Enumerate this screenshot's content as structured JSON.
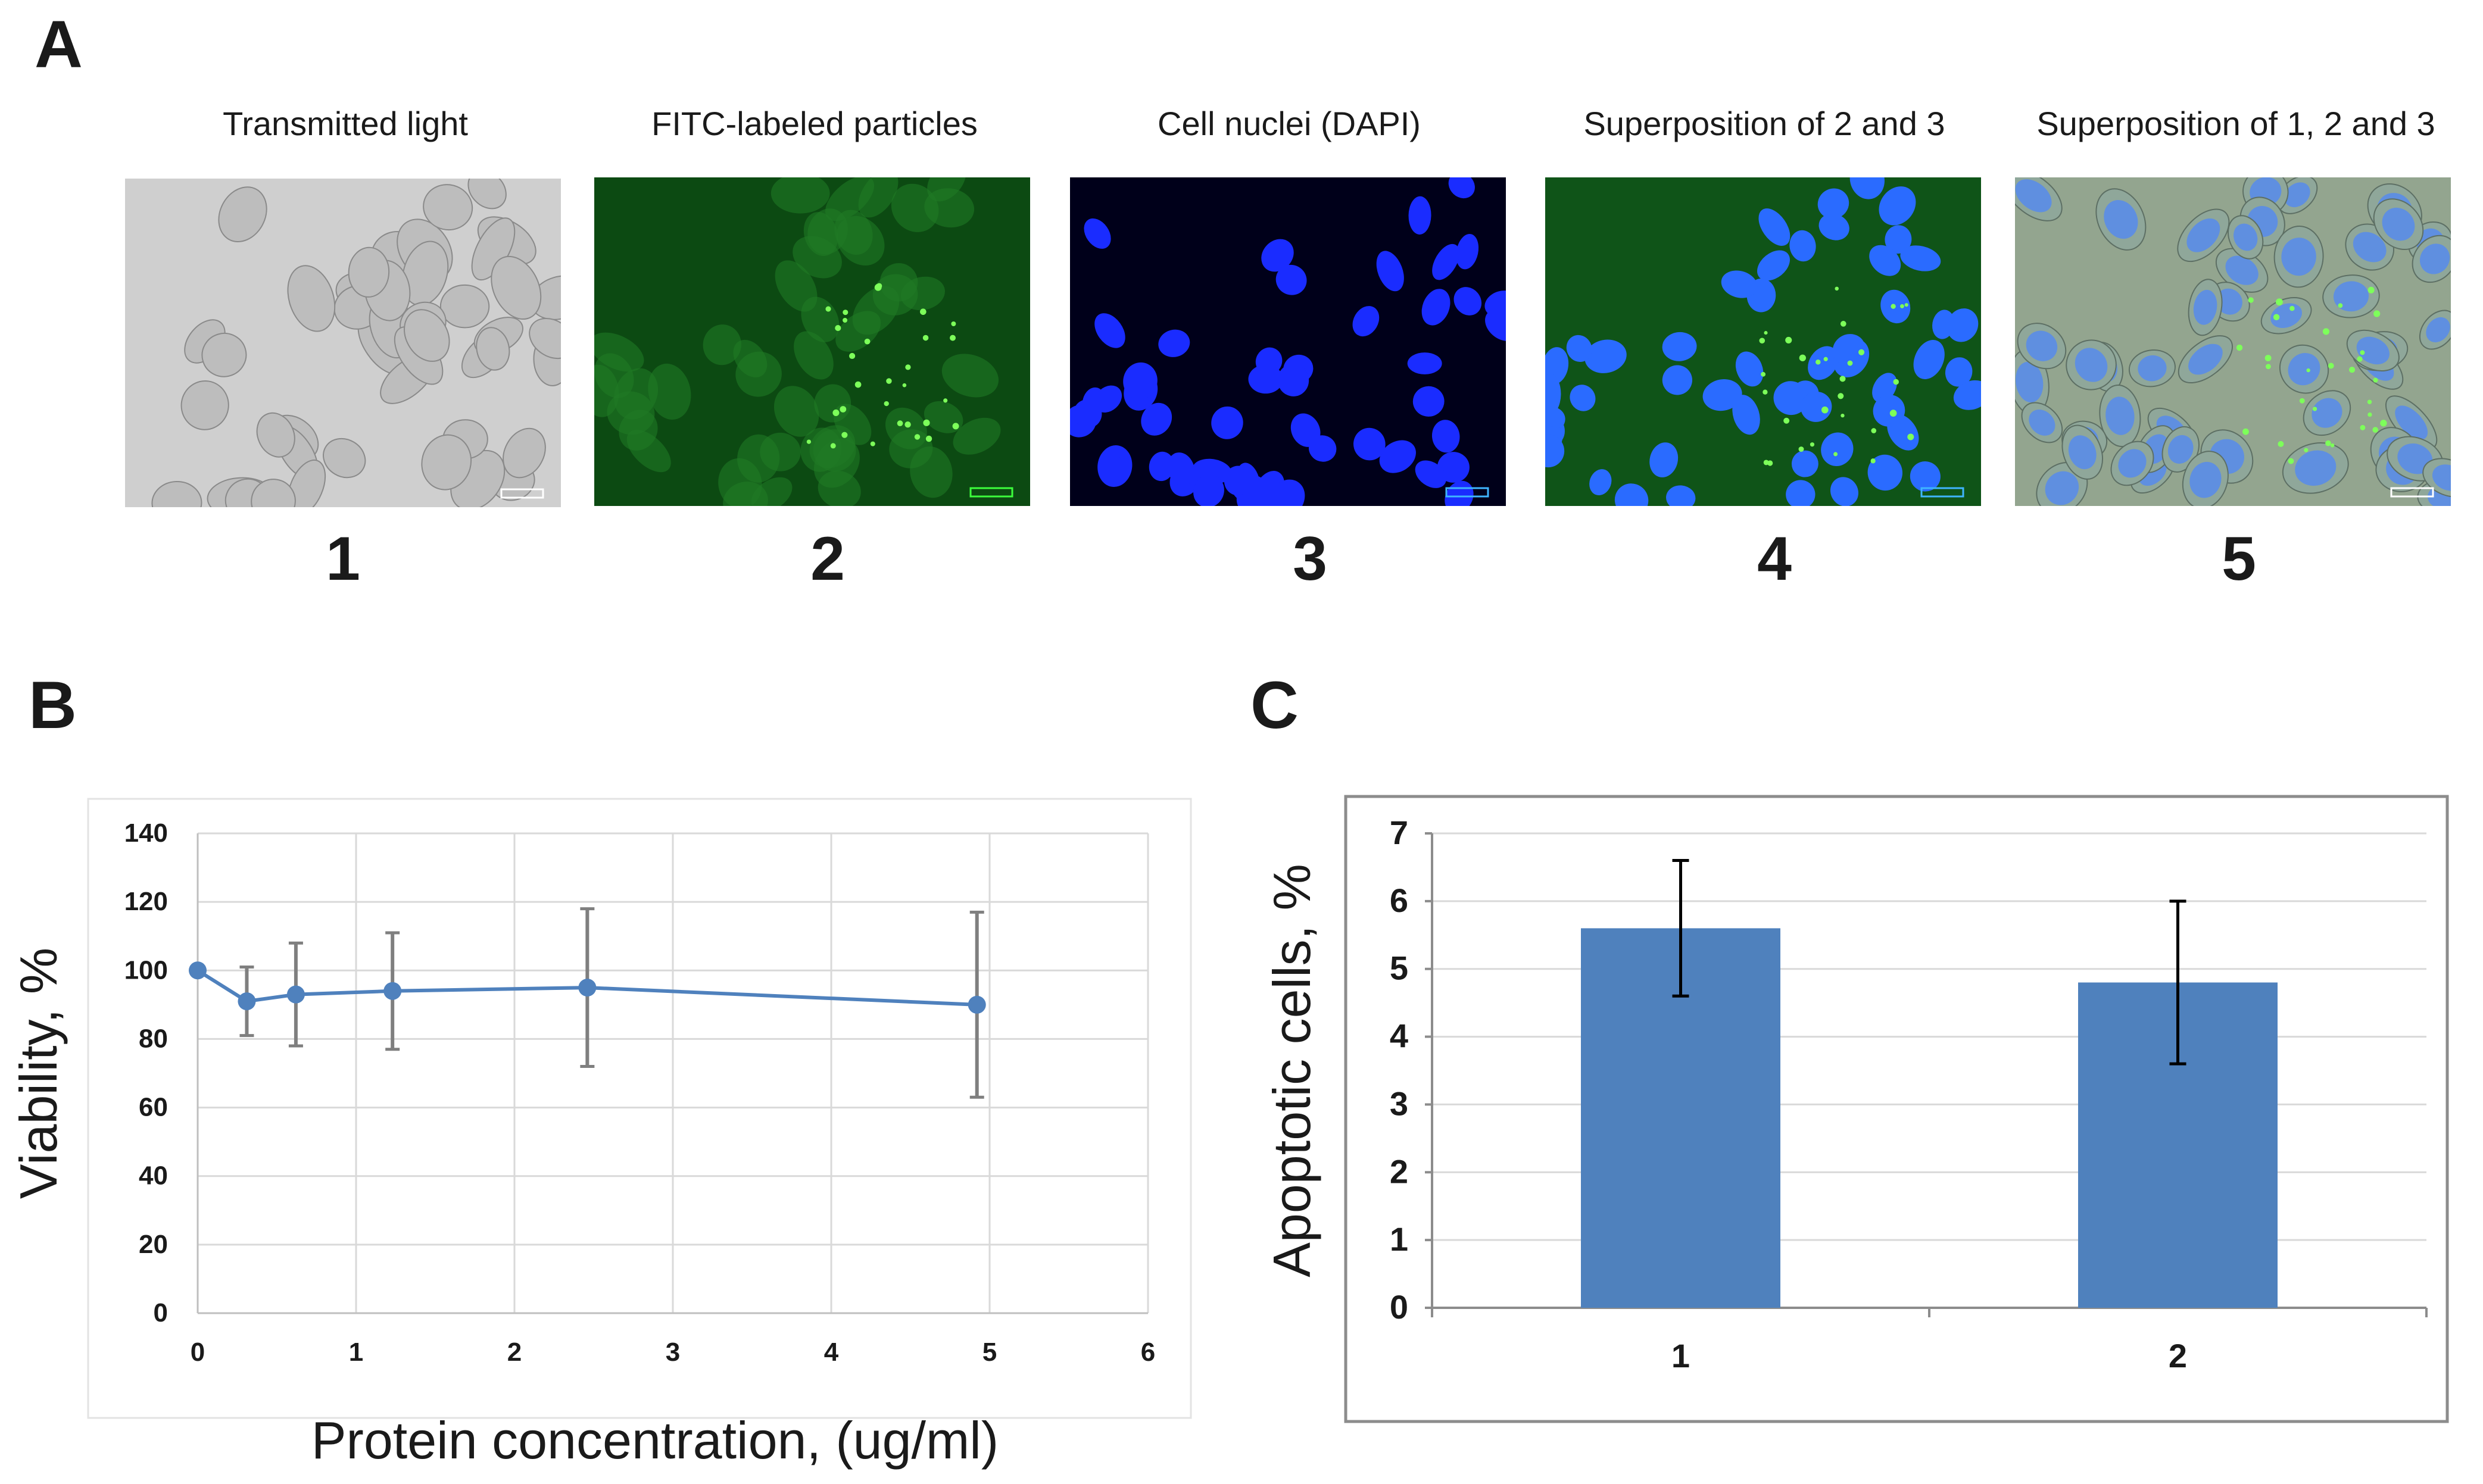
{
  "panel_a": {
    "letter": "A",
    "images": [
      {
        "caption": "Transmitted light",
        "number": "1",
        "kind": "brightfield"
      },
      {
        "caption": "FITC-labeled particles",
        "number": "2",
        "kind": "green"
      },
      {
        "caption": "Cell nuclei (DAPI)",
        "number": "3",
        "kind": "blue"
      },
      {
        "caption": "Superposition of 2 and 3",
        "number": "4",
        "kind": "greenblue"
      },
      {
        "caption": "Superposition of 1, 2 and 3",
        "number": "5",
        "kind": "merge"
      }
    ]
  },
  "panel_b": {
    "letter": "B"
  },
  "panel_c": {
    "letter": "C"
  },
  "chart_data": [
    {
      "id": "B",
      "type": "line",
      "title": "",
      "xlabel": "Protein concentration, (ug/ml)",
      "ylabel": "Viability, %",
      "xlim": [
        0,
        6
      ],
      "ylim": [
        0,
        140
      ],
      "xticks": [
        0,
        1,
        2,
        3,
        4,
        5,
        6
      ],
      "yticks": [
        0,
        20,
        40,
        60,
        80,
        100,
        120,
        140
      ],
      "grid": true,
      "series": [
        {
          "name": "Viability",
          "color": "#4f81bd",
          "x": [
            0,
            0.31,
            0.62,
            1.23,
            2.46,
            4.92
          ],
          "y": [
            100,
            91,
            93,
            94,
            95,
            90
          ],
          "error": [
            0,
            10,
            15,
            17,
            23,
            27
          ]
        }
      ]
    },
    {
      "id": "C",
      "type": "bar",
      "title": "",
      "xlabel": "",
      "ylabel": "Apoptotic cells, %",
      "categories": [
        "1",
        "2"
      ],
      "values": [
        5.6,
        4.8
      ],
      "error": [
        1.0,
        1.2
      ],
      "ylim": [
        0,
        7
      ],
      "yticks": [
        0,
        1,
        2,
        3,
        4,
        5,
        6,
        7
      ],
      "grid": true,
      "color": "#4f81bd"
    }
  ]
}
